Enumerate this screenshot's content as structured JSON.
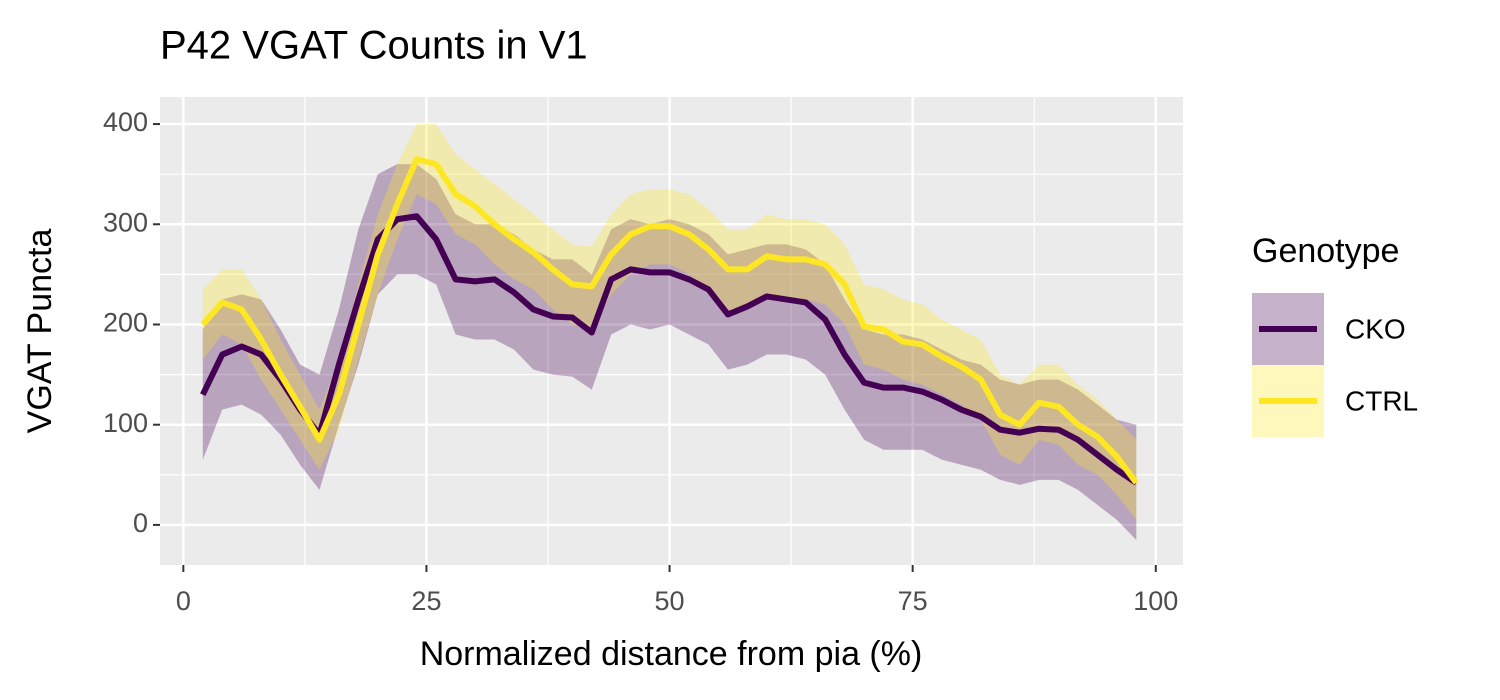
{
  "chart_data": {
    "type": "line",
    "title": "P42 VGAT Counts in V1",
    "x_label": "Normalized distance from pia (%)",
    "y_label": "VGAT Puncta",
    "legend_title": "Genotype",
    "legend_position": "right",
    "x": [
      2,
      4,
      6,
      8,
      10,
      12,
      14,
      16,
      18,
      20,
      22,
      24,
      26,
      28,
      30,
      32,
      34,
      36,
      38,
      40,
      42,
      44,
      46,
      48,
      50,
      52,
      54,
      56,
      58,
      60,
      62,
      64,
      66,
      68,
      70,
      72,
      74,
      76,
      78,
      80,
      82,
      84,
      86,
      88,
      90,
      92,
      94,
      96,
      98
    ],
    "series": [
      {
        "name": "CKO",
        "color": "#440154",
        "values": [
          130,
          170,
          178,
          170,
          145,
          115,
          90,
          160,
          225,
          285,
          305,
          308,
          285,
          245,
          243,
          245,
          232,
          215,
          208,
          207,
          192,
          245,
          255,
          252,
          252,
          245,
          235,
          210,
          218,
          228,
          225,
          222,
          205,
          170,
          142,
          137,
          137,
          133,
          125,
          115,
          108,
          95,
          92,
          96,
          95,
          85,
          70,
          55,
          42
        ],
        "upper": [
          195,
          225,
          230,
          225,
          195,
          160,
          150,
          215,
          295,
          350,
          360,
          360,
          345,
          310,
          300,
          300,
          290,
          275,
          265,
          265,
          250,
          295,
          305,
          300,
          305,
          300,
          290,
          270,
          275,
          280,
          280,
          275,
          260,
          225,
          195,
          190,
          190,
          185,
          175,
          165,
          160,
          145,
          140,
          145,
          145,
          135,
          120,
          105,
          100
        ],
        "lower": [
          65,
          115,
          120,
          110,
          90,
          60,
          35,
          100,
          160,
          230,
          250,
          250,
          240,
          190,
          185,
          185,
          175,
          155,
          150,
          148,
          135,
          190,
          200,
          195,
          200,
          190,
          180,
          155,
          160,
          170,
          170,
          165,
          150,
          115,
          85,
          75,
          75,
          75,
          65,
          60,
          55,
          45,
          40,
          45,
          45,
          35,
          20,
          5,
          -15
        ]
      },
      {
        "name": "CTRL",
        "color": "#fde725",
        "values": [
          200,
          222,
          215,
          185,
          150,
          118,
          85,
          130,
          200,
          270,
          320,
          365,
          360,
          330,
          318,
          300,
          285,
          272,
          255,
          240,
          238,
          270,
          290,
          298,
          298,
          290,
          275,
          255,
          255,
          268,
          265,
          265,
          260,
          240,
          198,
          195,
          183,
          180,
          168,
          158,
          145,
          110,
          100,
          122,
          118,
          100,
          88,
          68,
          42
        ],
        "upper": [
          235,
          255,
          255,
          225,
          185,
          150,
          115,
          165,
          240,
          310,
          360,
          400,
          400,
          370,
          355,
          340,
          325,
          310,
          295,
          280,
          278,
          310,
          330,
          335,
          335,
          330,
          315,
          295,
          295,
          310,
          305,
          305,
          300,
          280,
          240,
          235,
          225,
          220,
          205,
          195,
          185,
          150,
          140,
          160,
          160,
          140,
          125,
          105,
          85
        ],
        "lower": [
          165,
          190,
          180,
          145,
          115,
          85,
          55,
          95,
          165,
          230,
          285,
          330,
          320,
          290,
          280,
          260,
          245,
          235,
          215,
          200,
          198,
          230,
          250,
          260,
          260,
          250,
          235,
          215,
          215,
          225,
          225,
          225,
          220,
          200,
          160,
          155,
          145,
          140,
          130,
          120,
          105,
          70,
          60,
          85,
          80,
          60,
          50,
          30,
          5
        ]
      }
    ],
    "xlim": [
      -2.4,
      102.8
    ],
    "ylim": [
      -40,
      427
    ],
    "xticks": [
      0,
      25,
      50,
      75,
      100
    ],
    "yticks": [
      0,
      100,
      200,
      300,
      400
    ],
    "grid": true
  }
}
